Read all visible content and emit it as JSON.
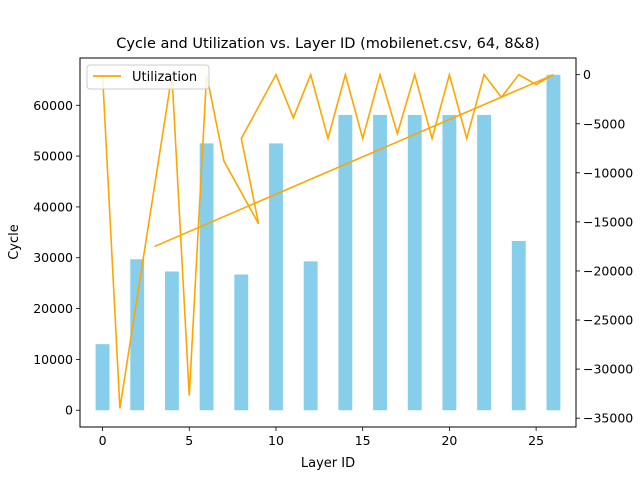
{
  "chart_data": {
    "type": "bar+line",
    "title": "Cycle and Utilization vs. Layer ID (mobilenet.csv, 64, 8&8)",
    "xlabel": "Layer ID",
    "ylabel": "Cycle",
    "xlim": [
      -1.3,
      27.3
    ],
    "ylim": [
      -3300,
      69300
    ],
    "y2lim": [
      -35900,
      1700
    ],
    "xticks": [
      0,
      5,
      10,
      15,
      20,
      25
    ],
    "yticks": [
      0,
      10000,
      20000,
      30000,
      40000,
      50000,
      60000
    ],
    "y2ticks": [
      -35000,
      -30000,
      -25000,
      -20000,
      -15000,
      -10000,
      -5000,
      0
    ],
    "grid": false,
    "legend": {
      "position": "top-left",
      "entries": [
        "Utilization"
      ]
    },
    "bar_series": {
      "axis": "left",
      "color": "#87ceeb",
      "width": 0.8,
      "x": [
        0,
        2,
        4,
        6,
        8,
        10,
        12,
        14,
        16,
        18,
        20,
        22,
        24,
        26
      ],
      "values": [
        13000,
        29700,
        27300,
        52500,
        26700,
        52500,
        29300,
        58100,
        58100,
        58100,
        58100,
        58100,
        33300,
        66000
      ]
    },
    "line_series": {
      "name": "Utilization",
      "axis": "right",
      "color": "#ffa500",
      "x": [
        0,
        1,
        4,
        5,
        6,
        7,
        9,
        8,
        10,
        11,
        12,
        13,
        14,
        15,
        16,
        17,
        18,
        19,
        20,
        21,
        22,
        23,
        24,
        25,
        26,
        3
      ],
      "y": [
        0,
        -34000,
        0,
        -32700,
        0,
        -8800,
        -15200,
        -6500,
        0,
        -4400,
        0,
        -6500,
        0,
        -6500,
        0,
        -6000,
        0,
        -6500,
        0,
        -6500,
        0,
        -2300,
        0,
        -1000,
        0,
        -17500
      ]
    }
  }
}
